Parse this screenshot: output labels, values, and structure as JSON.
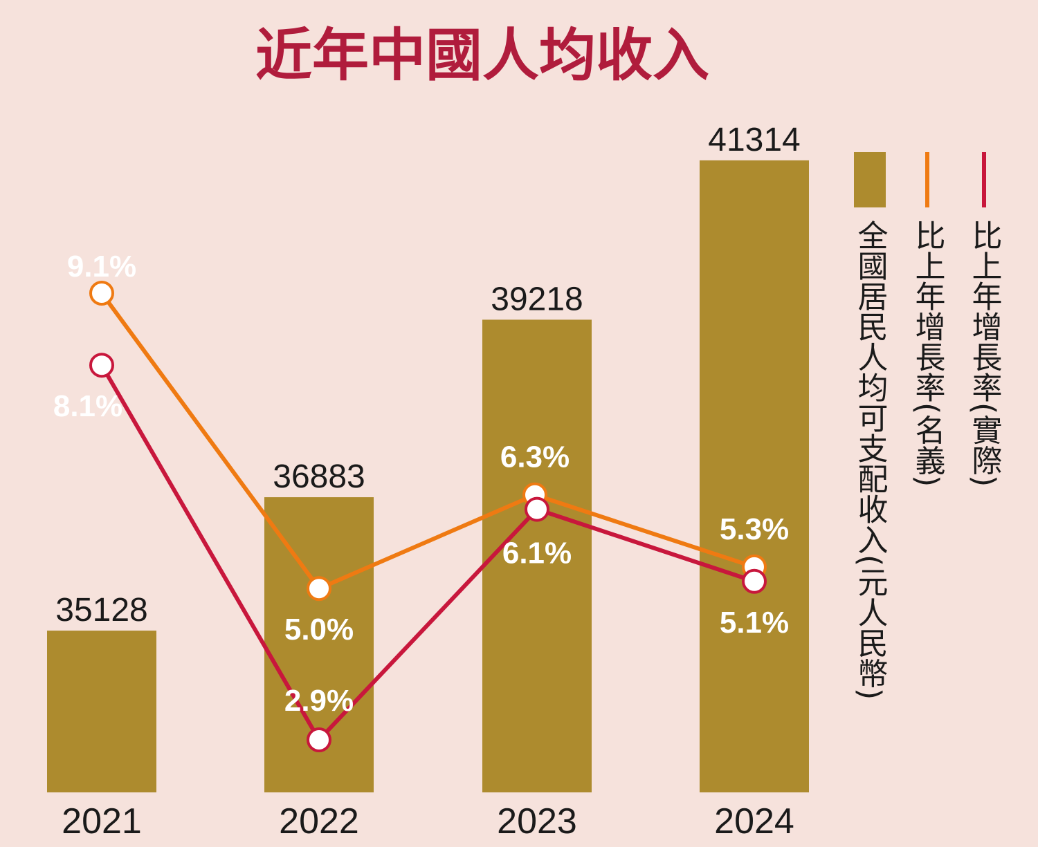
{
  "chart_data": {
    "type": "bar",
    "title": "近年中國人均收入",
    "categories": [
      "2021",
      "2022",
      "2023",
      "2024"
    ],
    "bar_series": {
      "name": "全國居民人均可支配收入(元人民幣)",
      "values": [
        35128,
        36883,
        39218,
        41314
      ],
      "color": "#ad8b2e"
    },
    "line_series": [
      {
        "name": "比上年增長率(名義)",
        "values": [
          9.1,
          5.0,
          6.3,
          5.3
        ],
        "labels": [
          "9.1%",
          "5.0%",
          "6.3%",
          "5.3%"
        ],
        "color": "#ef7a12"
      },
      {
        "name": "比上年增長率(實際)",
        "values": [
          8.1,
          2.9,
          6.1,
          5.1
        ],
        "labels": [
          "8.1%",
          "2.9%",
          "6.1%",
          "5.1%"
        ],
        "color": "#c8173c"
      }
    ],
    "legend_position": "right",
    "grid": false
  }
}
